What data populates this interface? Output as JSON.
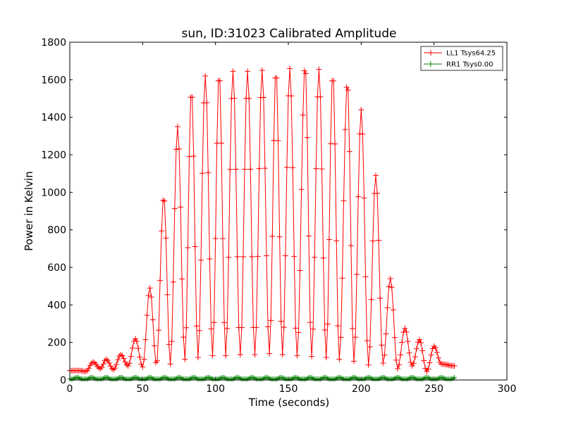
{
  "chart_data": {
    "type": "line",
    "title": "sun, ID:31023 Calibrated Amplitude",
    "xlabel": "Time (seconds)",
    "ylabel": "Power in Kelvin",
    "xlim": [
      0,
      300
    ],
    "ylim": [
      0,
      1800
    ],
    "xticks": [
      "0",
      "50",
      "100",
      "150",
      "200",
      "250",
      "300"
    ],
    "yticks": [
      "0",
      "200",
      "400",
      "600",
      "800",
      "1000",
      "1200",
      "1400",
      "1600",
      "1800"
    ],
    "grid": false,
    "legend_position": "top-right",
    "marker": "+",
    "series": [
      {
        "name": "LL1 Tsys64.25",
        "color": "#ff0000",
        "sample_interval": 1,
        "x_start": 0,
        "x_end": 264,
        "peaks": [
          {
            "x": 7,
            "y": 50
          },
          {
            "x": 16,
            "y": 95
          },
          {
            "x": 25,
            "y": 110
          },
          {
            "x": 35,
            "y": 135
          },
          {
            "x": 45,
            "y": 220
          },
          {
            "x": 55,
            "y": 490
          },
          {
            "x": 64.5,
            "y": 980
          },
          {
            "x": 74,
            "y": 1350
          },
          {
            "x": 83.5,
            "y": 1550
          },
          {
            "x": 93,
            "y": 1620
          },
          {
            "x": 102.5,
            "y": 1640
          },
          {
            "x": 112,
            "y": 1645
          },
          {
            "x": 122,
            "y": 1645
          },
          {
            "x": 132,
            "y": 1650
          },
          {
            "x": 141.5,
            "y": 1655
          },
          {
            "x": 151,
            "y": 1660
          },
          {
            "x": 161.5,
            "y": 1680
          },
          {
            "x": 171,
            "y": 1655
          },
          {
            "x": 180.5,
            "y": 1640
          },
          {
            "x": 190.5,
            "y": 1590
          },
          {
            "x": 200,
            "y": 1440
          },
          {
            "x": 210,
            "y": 1090
          },
          {
            "x": 220,
            "y": 540
          },
          {
            "x": 230,
            "y": 275
          },
          {
            "x": 240,
            "y": 215
          },
          {
            "x": 250,
            "y": 180
          }
        ],
        "troughs": [
          {
            "x": 11,
            "y": 45
          },
          {
            "x": 21,
            "y": 60
          },
          {
            "x": 30,
            "y": 55
          },
          {
            "x": 40,
            "y": 75
          },
          {
            "x": 50,
            "y": 70
          },
          {
            "x": 59.5,
            "y": 80
          },
          {
            "x": 69,
            "y": 85
          },
          {
            "x": 79,
            "y": 110
          },
          {
            "x": 88,
            "y": 120
          },
          {
            "x": 98,
            "y": 130
          },
          {
            "x": 107,
            "y": 130
          },
          {
            "x": 117,
            "y": 135
          },
          {
            "x": 127,
            "y": 135
          },
          {
            "x": 137,
            "y": 140
          },
          {
            "x": 146,
            "y": 135
          },
          {
            "x": 156,
            "y": 130
          },
          {
            "x": 166,
            "y": 125
          },
          {
            "x": 176,
            "y": 120
          },
          {
            "x": 185,
            "y": 110
          },
          {
            "x": 195,
            "y": 100
          },
          {
            "x": 205,
            "y": 80
          },
          {
            "x": 215,
            "y": 90
          },
          {
            "x": 225,
            "y": 60
          },
          {
            "x": 235,
            "y": 75
          },
          {
            "x": 245,
            "y": 45
          },
          {
            "x": 255,
            "y": 85
          },
          {
            "x": 264,
            "y": 75
          }
        ]
      },
      {
        "name": "RR1 Tsys0.00",
        "color": "#008000",
        "sample_interval": 1,
        "x_start": 0,
        "x_end": 264,
        "values_description_level": 5,
        "bumps_every": 10,
        "bump_level": 15
      }
    ]
  }
}
